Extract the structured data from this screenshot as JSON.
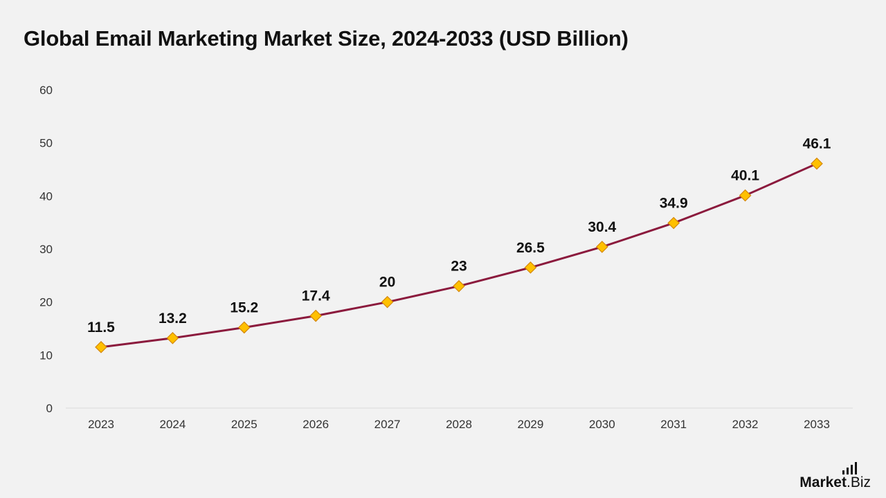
{
  "title": "Global Email Marketing Market Size, 2024-2033 (USD Billion)",
  "logo": {
    "brand": "Market",
    "suffix": ".Biz"
  },
  "colors": {
    "background": "#f2f2f2",
    "line": "#8b1a3d",
    "marker_fill": "#ffc000",
    "marker_stroke": "#d4870a",
    "text": "#111111",
    "axis_text": "#333333"
  },
  "chart_data": {
    "type": "line",
    "title": "Global Email Marketing Market Size, 2024-2033 (USD Billion)",
    "xlabel": "",
    "ylabel": "",
    "categories": [
      "2023",
      "2024",
      "2025",
      "2026",
      "2027",
      "2028",
      "2029",
      "2030",
      "2031",
      "2032",
      "2033"
    ],
    "series": [
      {
        "values": [
          11.5,
          13.2,
          15.2,
          17.4,
          20,
          23,
          26.5,
          30.4,
          34.9,
          40.1,
          46.1
        ],
        "data_labels": [
          "11.5",
          "13.2",
          "15.2",
          "17.4",
          "20",
          "23",
          "26.5",
          "30.4",
          "34.9",
          "40.1",
          "46.1"
        ],
        "marker": "diamond"
      }
    ],
    "ylim": [
      0,
      60
    ],
    "yticks": [
      0,
      10,
      20,
      30,
      40,
      50,
      60
    ],
    "grid": false,
    "legend": "none"
  }
}
